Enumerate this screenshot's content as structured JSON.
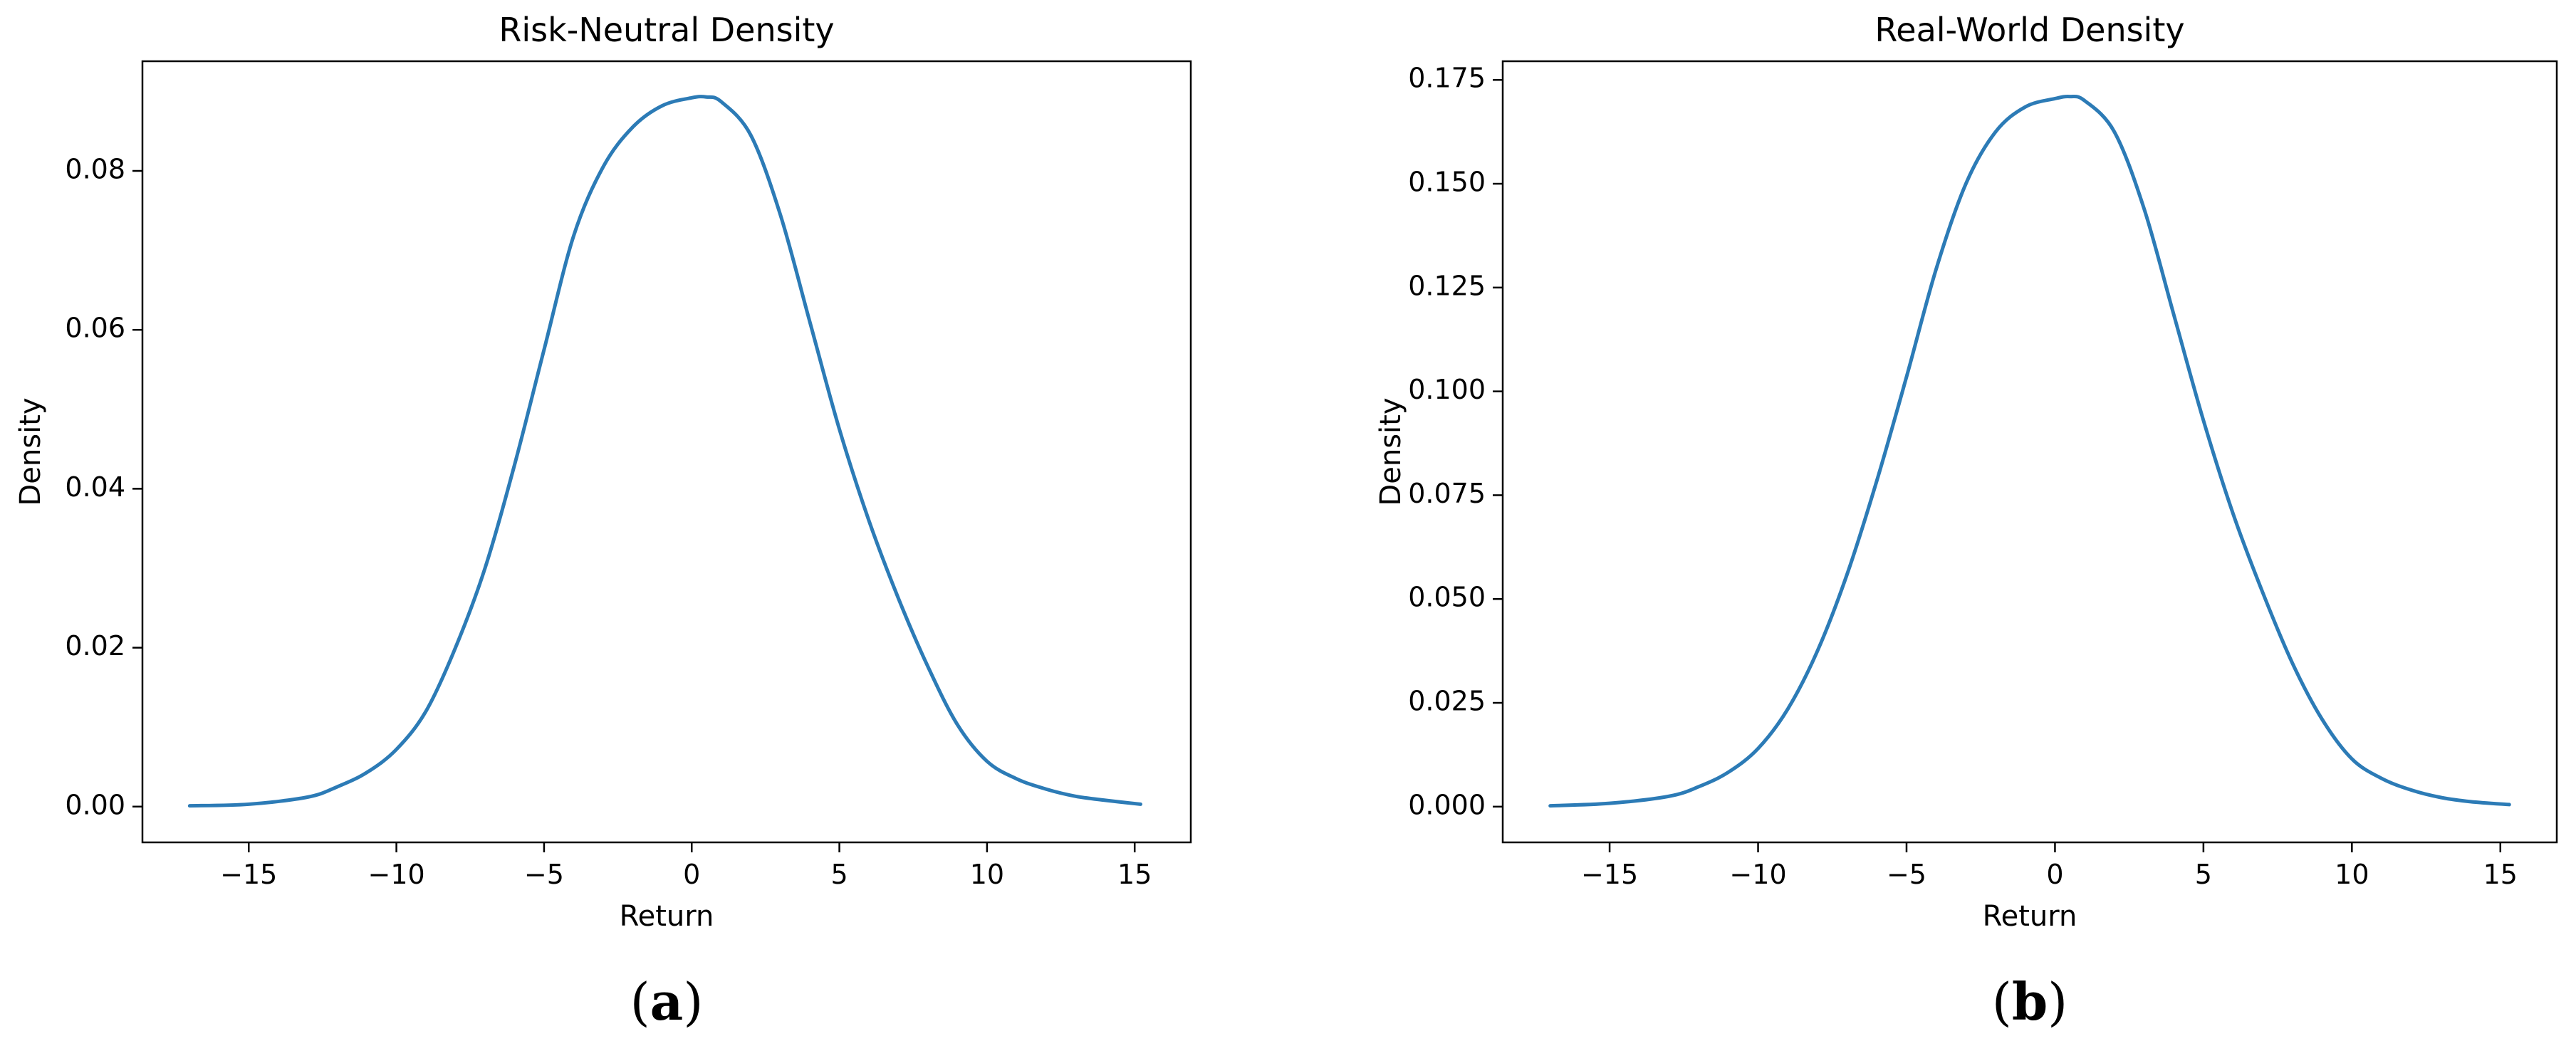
{
  "colors": {
    "line": "#2c7bb6"
  },
  "chart_data": [
    {
      "type": "line",
      "title": "Risk-Neutral Density",
      "xlabel": "Return",
      "ylabel": "Density",
      "caption_letter": "a",
      "xlim": [
        -18.6,
        16.9
      ],
      "ylim": [
        -0.0045,
        0.0938
      ],
      "xticks": [
        -15,
        -10,
        -5,
        0,
        5,
        10,
        15
      ],
      "xtick_labels": [
        "−15",
        "−10",
        "−5",
        "0",
        "5",
        "10",
        "15"
      ],
      "yticks": [
        0.0,
        0.02,
        0.04,
        0.06,
        0.08
      ],
      "ytick_labels": [
        "0.00",
        "0.02",
        "0.04",
        "0.06",
        "0.08"
      ],
      "series": [
        {
          "x": [
            -17.0,
            -15.0,
            -13.0,
            -12.0,
            -11.0,
            -10.0,
            -9.0,
            -8.0,
            -7.0,
            -6.0,
            -5.0,
            -4.0,
            -3.0,
            -2.0,
            -1.0,
            0.0,
            0.5,
            1.0,
            2.0,
            3.0,
            4.0,
            5.0,
            6.0,
            7.0,
            8.0,
            9.0,
            10.0,
            11.0,
            12.0,
            13.0,
            14.0,
            15.2
          ],
          "y": [
            0.0001,
            0.0003,
            0.0012,
            0.0025,
            0.0043,
            0.0072,
            0.012,
            0.02,
            0.03,
            0.043,
            0.0575,
            0.0718,
            0.0805,
            0.0855,
            0.0882,
            0.0892,
            0.0893,
            0.0887,
            0.0845,
            0.0745,
            0.061,
            0.0475,
            0.036,
            0.0262,
            0.0176,
            0.0103,
            0.0057,
            0.0035,
            0.0022,
            0.0013,
            0.0008,
            0.0003
          ]
        }
      ]
    },
    {
      "type": "line",
      "title": "Real-World Density",
      "xlabel": "Return",
      "ylabel": "Density",
      "caption_letter": "b",
      "xlim": [
        -18.6,
        16.9
      ],
      "ylim": [
        -0.0086,
        0.1795
      ],
      "xticks": [
        -15,
        -10,
        -5,
        0,
        5,
        10,
        15
      ],
      "xtick_labels": [
        "−15",
        "−10",
        "−5",
        "0",
        "5",
        "10",
        "15"
      ],
      "yticks": [
        0.0,
        0.025,
        0.05,
        0.075,
        0.1,
        0.125,
        0.15,
        0.175
      ],
      "ytick_labels": [
        "0.000",
        "0.025",
        "0.050",
        "0.075",
        "0.100",
        "0.125",
        "0.150",
        "0.175"
      ],
      "series": [
        {
          "x": [
            -17.0,
            -15.0,
            -13.0,
            -12.0,
            -11.0,
            -10.0,
            -9.0,
            -8.0,
            -7.0,
            -6.0,
            -5.0,
            -4.0,
            -3.0,
            -2.0,
            -1.0,
            0.0,
            0.5,
            1.0,
            2.0,
            3.0,
            4.0,
            5.0,
            6.0,
            7.0,
            8.0,
            9.0,
            10.0,
            11.0,
            12.0,
            13.0,
            14.0,
            15.3
          ],
          "y": [
            0.0002,
            0.0008,
            0.0025,
            0.0048,
            0.0083,
            0.014,
            0.0235,
            0.0375,
            0.056,
            0.0785,
            0.1035,
            0.1295,
            0.15,
            0.1625,
            0.1685,
            0.1705,
            0.171,
            0.17,
            0.1625,
            0.144,
            0.1185,
            0.093,
            0.0705,
            0.0515,
            0.0345,
            0.021,
            0.0115,
            0.0068,
            0.004,
            0.0022,
            0.0012,
            0.0005
          ]
        }
      ]
    }
  ]
}
